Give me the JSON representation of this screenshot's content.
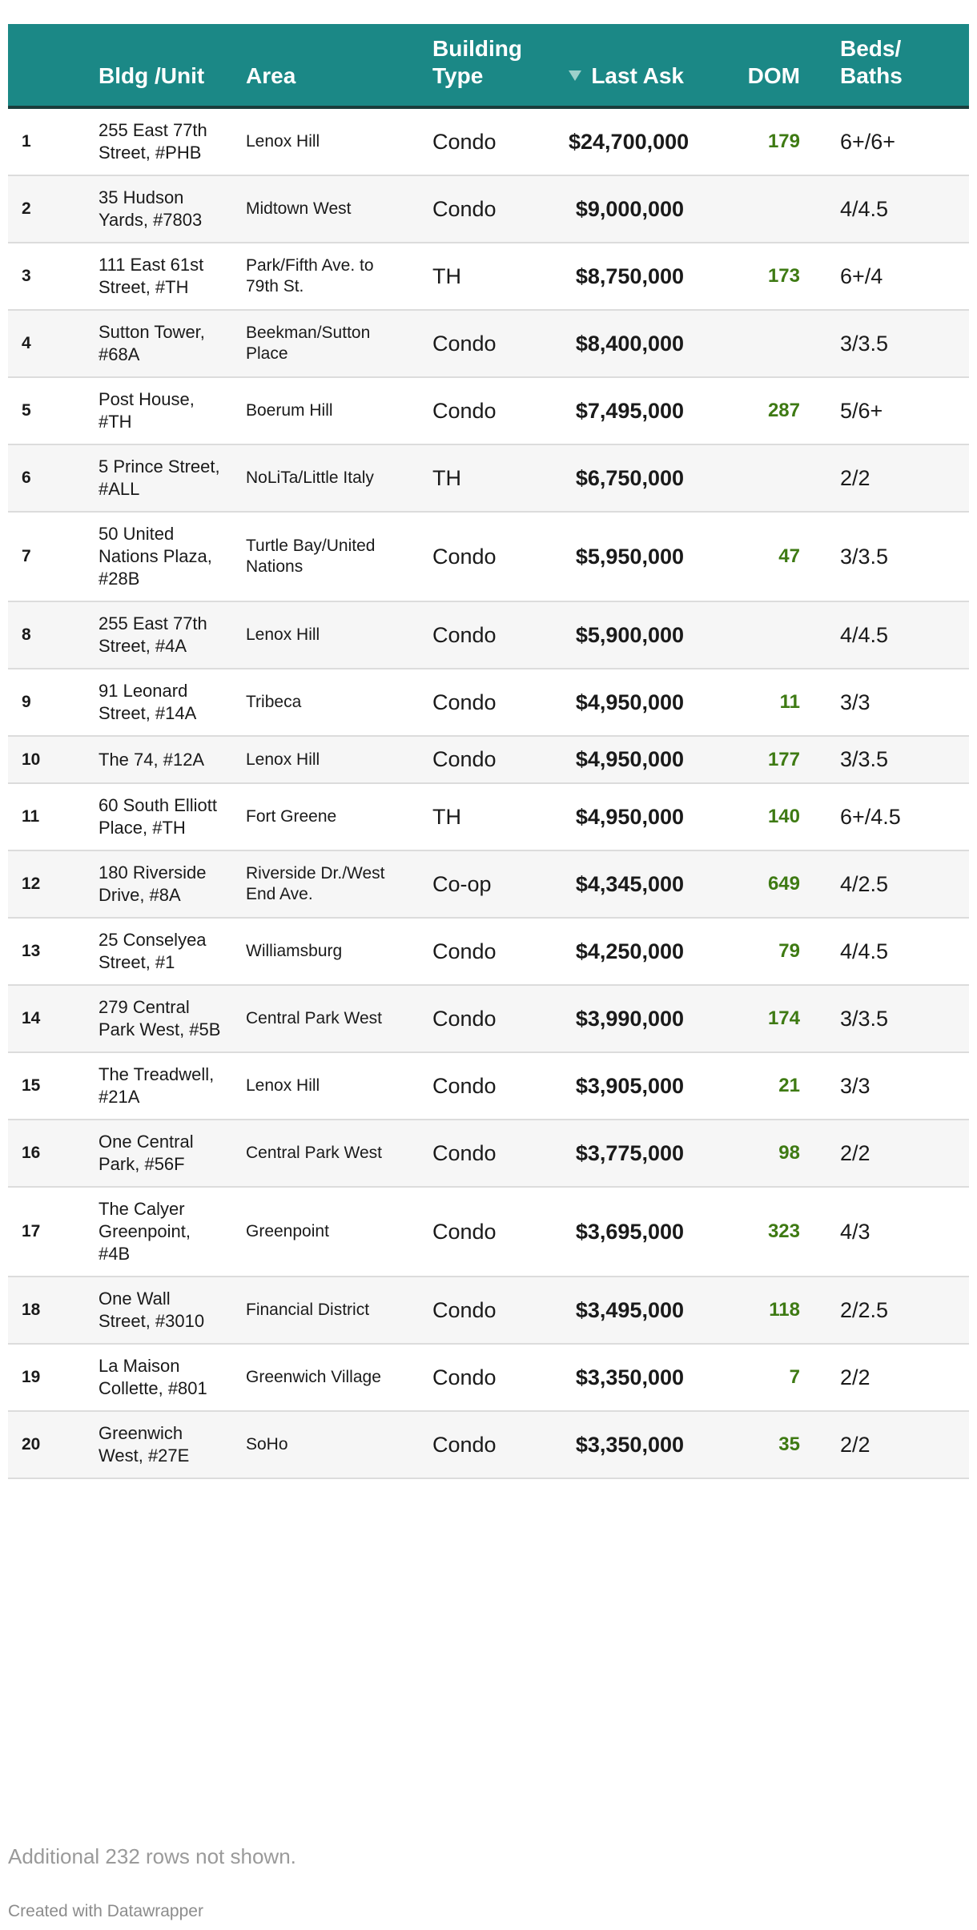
{
  "chart_data": {
    "type": "table",
    "columns": [
      "Bldg /Unit",
      "Area",
      "Building Type",
      "Last Ask",
      "DOM",
      "Beds/ Baths"
    ],
    "sorted_by": "Last Ask",
    "sort_direction": "descending",
    "rows": [
      {
        "rank": "1",
        "bldg": "255 East 77th Street, #PHB",
        "area": "Lenox Hill",
        "type": "Condo",
        "ask": "$24,700,000",
        "dom": "179",
        "beds": "6+/6+"
      },
      {
        "rank": "2",
        "bldg": "35 Hudson Yards, #7803",
        "area": "Midtown West",
        "type": "Condo",
        "ask": "$9,000,000",
        "dom": "",
        "beds": "4/4.5"
      },
      {
        "rank": "3",
        "bldg": "111 East 61st Street, #TH",
        "area": "Park/Fifth Ave. to 79th St.",
        "type": "TH",
        "ask": "$8,750,000",
        "dom": "173",
        "beds": "6+/4"
      },
      {
        "rank": "4",
        "bldg": "Sutton Tower, #68A",
        "area": "Beekman/Sutton Place",
        "type": "Condo",
        "ask": "$8,400,000",
        "dom": "",
        "beds": "3/3.5"
      },
      {
        "rank": "5",
        "bldg": "Post House, #TH",
        "area": "Boerum Hill",
        "type": "Condo",
        "ask": "$7,495,000",
        "dom": "287",
        "beds": "5/6+"
      },
      {
        "rank": "6",
        "bldg": "5 Prince Street, #ALL",
        "area": "NoLiTa/Little Italy",
        "type": "TH",
        "ask": "$6,750,000",
        "dom": "",
        "beds": "2/2"
      },
      {
        "rank": "7",
        "bldg": "50 United Nations Plaza, #28B",
        "area": "Turtle Bay/United Nations",
        "type": "Condo",
        "ask": "$5,950,000",
        "dom": "47",
        "beds": "3/3.5"
      },
      {
        "rank": "8",
        "bldg": "255 East 77th Street, #4A",
        "area": "Lenox Hill",
        "type": "Condo",
        "ask": "$5,900,000",
        "dom": "",
        "beds": "4/4.5"
      },
      {
        "rank": "9",
        "bldg": "91 Leonard Street, #14A",
        "area": "Tribeca",
        "type": "Condo",
        "ask": "$4,950,000",
        "dom": "11",
        "beds": "3/3"
      },
      {
        "rank": "10",
        "bldg": "The 74, #12A",
        "area": "Lenox Hill",
        "type": "Condo",
        "ask": "$4,950,000",
        "dom": "177",
        "beds": "3/3.5"
      },
      {
        "rank": "11",
        "bldg": "60 South Elliott Place, #TH",
        "area": "Fort Greene",
        "type": "TH",
        "ask": "$4,950,000",
        "dom": "140",
        "beds": "6+/4.5"
      },
      {
        "rank": "12",
        "bldg": "180 Riverside Drive, #8A",
        "area": "Riverside Dr./West End Ave.",
        "type": "Co-op",
        "ask": "$4,345,000",
        "dom": "649",
        "beds": "4/2.5"
      },
      {
        "rank": "13",
        "bldg": "25 Conselyea Street, #1",
        "area": "Williamsburg",
        "type": "Condo",
        "ask": "$4,250,000",
        "dom": "79",
        "beds": "4/4.5"
      },
      {
        "rank": "14",
        "bldg": "279 Central Park West, #5B",
        "area": "Central Park West",
        "type": "Condo",
        "ask": "$3,990,000",
        "dom": "174",
        "beds": "3/3.5"
      },
      {
        "rank": "15",
        "bldg": "The Treadwell, #21A",
        "area": "Lenox Hill",
        "type": "Condo",
        "ask": "$3,905,000",
        "dom": "21",
        "beds": "3/3"
      },
      {
        "rank": "16",
        "bldg": "One Central Park, #56F",
        "area": "Central Park West",
        "type": "Condo",
        "ask": "$3,775,000",
        "dom": "98",
        "beds": "2/2"
      },
      {
        "rank": "17",
        "bldg": "The Calyer Greenpoint, #4B",
        "area": "Greenpoint",
        "type": "Condo",
        "ask": "$3,695,000",
        "dom": "323",
        "beds": "4/3"
      },
      {
        "rank": "18",
        "bldg": "One Wall Street, #3010",
        "area": "Financial District",
        "type": "Condo",
        "ask": "$3,495,000",
        "dom": "118",
        "beds": "2/2.5"
      },
      {
        "rank": "19",
        "bldg": "La Maison Collette, #801",
        "area": "Greenwich Village",
        "type": "Condo",
        "ask": "$3,350,000",
        "dom": "7",
        "beds": "2/2"
      },
      {
        "rank": "20",
        "bldg": "Greenwich West, #27E",
        "area": "SoHo",
        "type": "Condo",
        "ask": "$3,350,000",
        "dom": "35",
        "beds": "2/2"
      }
    ]
  },
  "colors": {
    "header_bg": "#1b8886",
    "header_text": "#ffffff",
    "dom_text": "#3e7a13",
    "stripe": "#f6f6f6"
  },
  "footnote": "Additional 232 rows not shown.",
  "credit": "Created with Datawrapper"
}
